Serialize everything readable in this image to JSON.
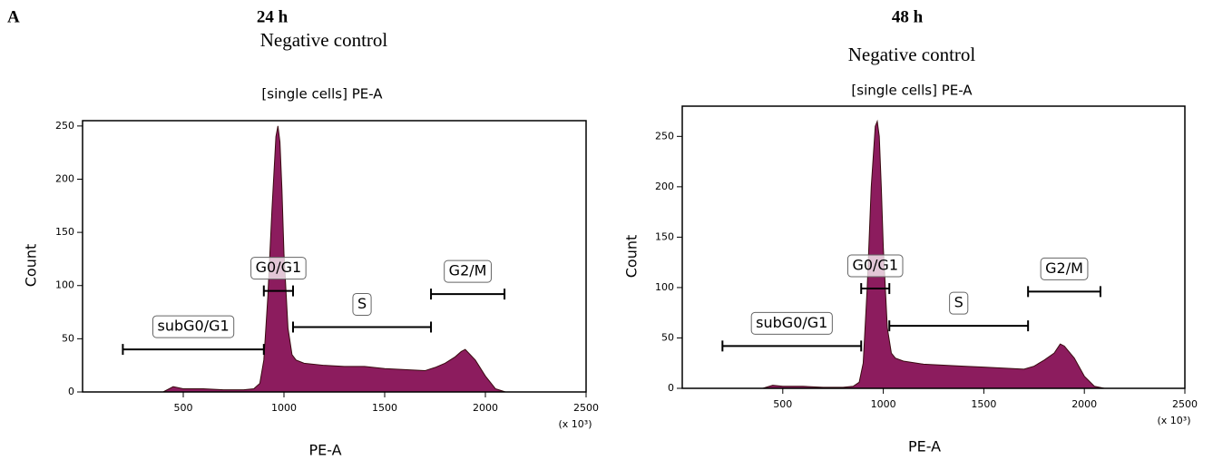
{
  "panel_label": "A",
  "chart_data": [
    {
      "type": "area",
      "heading": "24 h",
      "subtitle": "Negative control",
      "title": "[single cells] PE-A",
      "x_label": "PE-A",
      "y_label": "Count",
      "x_unit": "(x 10³)",
      "color": "#8c1c5e",
      "x": [
        400,
        450,
        500,
        600,
        700,
        800,
        850,
        880,
        900,
        920,
        940,
        960,
        970,
        980,
        990,
        1000,
        1020,
        1040,
        1060,
        1100,
        1200,
        1300,
        1400,
        1500,
        1600,
        1700,
        1750,
        1800,
        1850,
        1880,
        1900,
        1950,
        2000,
        2050,
        2100
      ],
      "values": [
        0,
        5,
        3,
        3,
        2,
        2,
        3,
        8,
        30,
        90,
        170,
        240,
        250,
        235,
        190,
        130,
        60,
        35,
        30,
        27,
        25,
        24,
        24,
        22,
        21,
        20,
        23,
        27,
        33,
        38,
        40,
        30,
        15,
        3,
        0
      ],
      "xlim": [
        0,
        2500
      ],
      "xticks": [
        500,
        1000,
        1500,
        2000,
        2500
      ],
      "ylim": [
        0,
        255
      ],
      "yticks": [
        0,
        50,
        100,
        150,
        200,
        250
      ],
      "gates": [
        {
          "label": "subG0/G1",
          "x": [
            200,
            900
          ],
          "y": 40
        },
        {
          "label": "G0/G1",
          "x": [
            900,
            1045
          ],
          "y": 95
        },
        {
          "label": "S",
          "x": [
            1045,
            1730
          ],
          "y": 61
        },
        {
          "label": "G2/M",
          "x": [
            1730,
            2095
          ],
          "y": 92
        }
      ]
    },
    {
      "type": "area",
      "heading": "48 h",
      "subtitle": "Negative control",
      "title": "[single cells] PE-A",
      "x_label": "PE-A",
      "y_label": "Count",
      "x_unit": "(x 10³)",
      "color": "#8c1c5e",
      "x": [
        400,
        450,
        500,
        600,
        700,
        800,
        850,
        880,
        900,
        920,
        940,
        960,
        970,
        980,
        990,
        1000,
        1020,
        1040,
        1060,
        1100,
        1200,
        1300,
        1400,
        1500,
        1600,
        1700,
        1750,
        1800,
        1850,
        1880,
        1900,
        1950,
        2000,
        2050,
        2100
      ],
      "values": [
        0,
        3,
        2,
        2,
        1,
        1,
        2,
        6,
        25,
        100,
        200,
        260,
        265,
        250,
        200,
        140,
        60,
        35,
        30,
        27,
        24,
        23,
        22,
        21,
        20,
        19,
        22,
        28,
        35,
        44,
        42,
        30,
        12,
        2,
        0
      ],
      "xlim": [
        0,
        2500
      ],
      "xticks": [
        500,
        1000,
        1500,
        2000,
        2500
      ],
      "ylim": [
        0,
        280
      ],
      "yticks": [
        0,
        50,
        100,
        150,
        200,
        250
      ],
      "gates": [
        {
          "label": "subG0/G1",
          "x": [
            200,
            890
          ],
          "y": 42
        },
        {
          "label": "G0/G1",
          "x": [
            890,
            1030
          ],
          "y": 99
        },
        {
          "label": "S",
          "x": [
            1030,
            1720
          ],
          "y": 62
        },
        {
          "label": "G2/M",
          "x": [
            1720,
            2080
          ],
          "y": 96
        }
      ]
    }
  ]
}
